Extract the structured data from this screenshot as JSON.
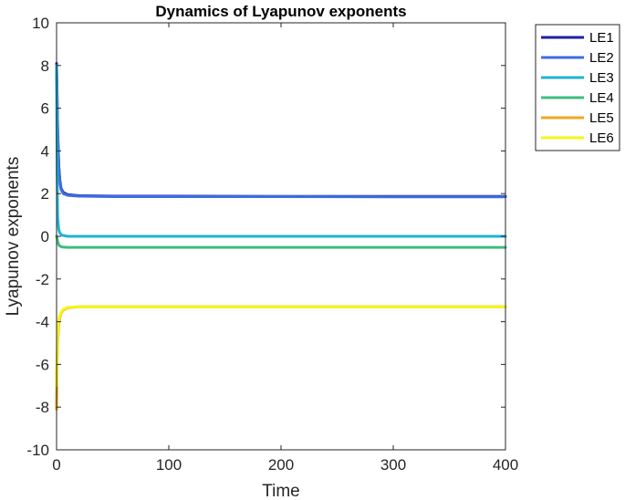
{
  "chart_data": {
    "type": "line",
    "title": "Dynamics of Lyapunov exponents",
    "xlabel": "Time",
    "ylabel": "Lyapunov exponents",
    "xlim": [
      0,
      400
    ],
    "ylim": [
      -10,
      10
    ],
    "xticks": [
      0,
      100,
      200,
      300,
      400
    ],
    "yticks": [
      -10,
      -8,
      -6,
      -4,
      -2,
      0,
      2,
      4,
      6,
      8,
      10
    ],
    "xtick_labels": [
      "0",
      "100",
      "200",
      "300",
      "400"
    ],
    "ytick_labels": [
      "-10",
      "-8",
      "-6",
      "-4",
      "-2",
      "0",
      "2",
      "4",
      "6",
      "8",
      "10"
    ],
    "grid": false,
    "legend_position": "outside-top-right",
    "series": [
      {
        "name": "LE1",
        "color": "#1f1fa8",
        "x": [
          0,
          1,
          2,
          3,
          4,
          6,
          10,
          20,
          50,
          100,
          200,
          300,
          400
        ],
        "y": [
          8.1,
          5.0,
          3.3,
          2.6,
          2.25,
          2.05,
          1.95,
          1.9,
          1.88,
          1.88,
          1.87,
          1.87,
          1.87
        ]
      },
      {
        "name": "LE2",
        "color": "#3a6ee0",
        "x": [
          0,
          1,
          2,
          3,
          4,
          6,
          10,
          20,
          50,
          100,
          200,
          300,
          400
        ],
        "y": [
          8.0,
          4.8,
          3.2,
          2.5,
          2.2,
          2.0,
          1.92,
          1.88,
          1.86,
          1.86,
          1.86,
          1.85,
          1.85
        ]
      },
      {
        "name": "LE3",
        "color": "#1fb3d6",
        "x": [
          0,
          0.5,
          1,
          2,
          3,
          5,
          10,
          20,
          50,
          100,
          200,
          300,
          400
        ],
        "y": [
          8.0,
          3.0,
          0.9,
          0.3,
          0.15,
          0.05,
          0.0,
          0.0,
          0.0,
          0.0,
          0.0,
          0.0,
          0.0
        ]
      },
      {
        "name": "LE4",
        "color": "#3dbd7d",
        "x": [
          0,
          0.5,
          1,
          2,
          3,
          5,
          10,
          20,
          50,
          100,
          200,
          300,
          400
        ],
        "y": [
          0.0,
          -0.1,
          -0.25,
          -0.4,
          -0.46,
          -0.5,
          -0.52,
          -0.52,
          -0.52,
          -0.52,
          -0.52,
          -0.52,
          -0.52
        ]
      },
      {
        "name": "LE5",
        "color": "#f0a81e",
        "x": [
          0,
          0.5,
          1,
          2,
          3,
          4,
          6,
          10,
          20,
          50,
          100,
          200,
          300,
          400
        ],
        "y": [
          -8.1,
          -6.0,
          -5.0,
          -4.1,
          -3.8,
          -3.6,
          -3.45,
          -3.35,
          -3.3,
          -3.3,
          -3.3,
          -3.3,
          -3.3,
          -3.3
        ]
      },
      {
        "name": "LE6",
        "color": "#f5f51a",
        "x": [
          0,
          0.5,
          1,
          2,
          3,
          4,
          6,
          10,
          20,
          50,
          100,
          200,
          300,
          400
        ],
        "y": [
          -7.0,
          -5.5,
          -4.6,
          -3.9,
          -3.7,
          -3.55,
          -3.42,
          -3.33,
          -3.3,
          -3.3,
          -3.3,
          -3.3,
          -3.3,
          -3.3
        ]
      }
    ]
  }
}
